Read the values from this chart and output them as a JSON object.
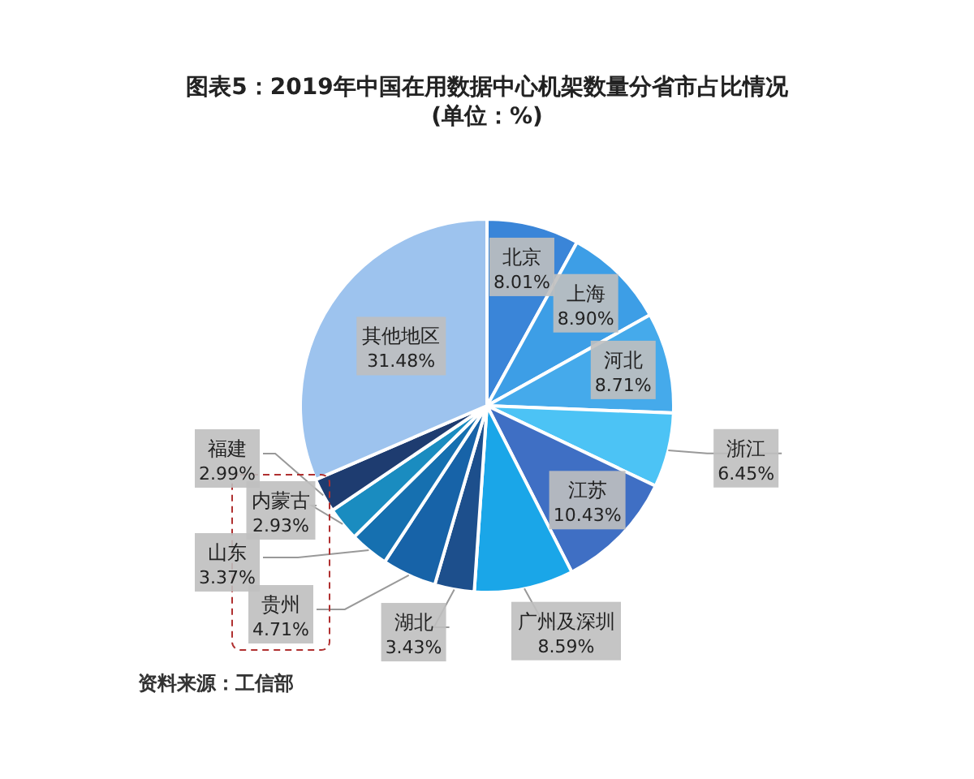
{
  "chart_data": {
    "type": "pie",
    "title": "图表5：2019年中国在用数据中心机架数量分省市占比情况",
    "subtitle": "(单位：%)",
    "categories": [
      "北京",
      "上海",
      "河北",
      "浙江",
      "江苏",
      "广州及深圳",
      "湖北",
      "贵州",
      "山东",
      "内蒙古",
      "福建",
      "其他地区"
    ],
    "values": [
      8.01,
      8.9,
      8.71,
      6.45,
      10.43,
      8.59,
      3.43,
      4.71,
      3.37,
      2.93,
      2.99,
      31.48
    ],
    "value_labels": [
      "8.01%",
      "8.90%",
      "8.71%",
      "6.45%",
      "10.43%",
      "8.59%",
      "3.43%",
      "4.71%",
      "3.37%",
      "2.93%",
      "2.99%",
      "31.48%"
    ],
    "colors": [
      "#3a85d8",
      "#3d9ee6",
      "#45aaeb",
      "#4cc3f5",
      "#3f6fc4",
      "#1aa6e8",
      "#1d4f8c",
      "#1763a8",
      "#1670b0",
      "#1a8cc0",
      "#1e3c70",
      "#9dc3ee"
    ],
    "annotations": [
      "资料来源：工信部"
    ]
  }
}
